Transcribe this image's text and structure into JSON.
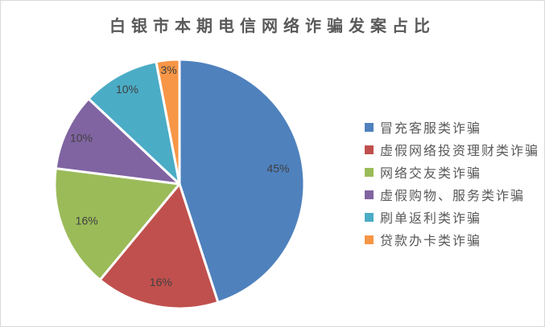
{
  "window": {
    "background": "#ffffff",
    "border_color": "#d9d9d9"
  },
  "chart_data": {
    "type": "pie",
    "title": "白银市本期电信网络诈骗发案占比",
    "categories": [
      "冒充客服类诈骗",
      "虚假网络投资理财类诈骗",
      "网络交友类诈骗",
      "虚假购物、服务类诈骗",
      "刷单返利类诈骗",
      "贷款办卡类诈骗"
    ],
    "values": [
      45,
      16,
      16,
      10,
      10,
      3
    ],
    "data_labels": [
      "45%",
      "16%",
      "16%",
      "10%",
      "10%",
      "3%"
    ],
    "colors": [
      "#4F81BD",
      "#C0504D",
      "#9BBB59",
      "#8064A2",
      "#4BACC6",
      "#F79646"
    ],
    "legend_position": "right",
    "start_angle_deg": 0,
    "direction": "clockwise",
    "slice_border_color": "#FFFFFF",
    "title_color": "#595959",
    "label_color": "#404040",
    "legend_text_color": "#595959"
  }
}
